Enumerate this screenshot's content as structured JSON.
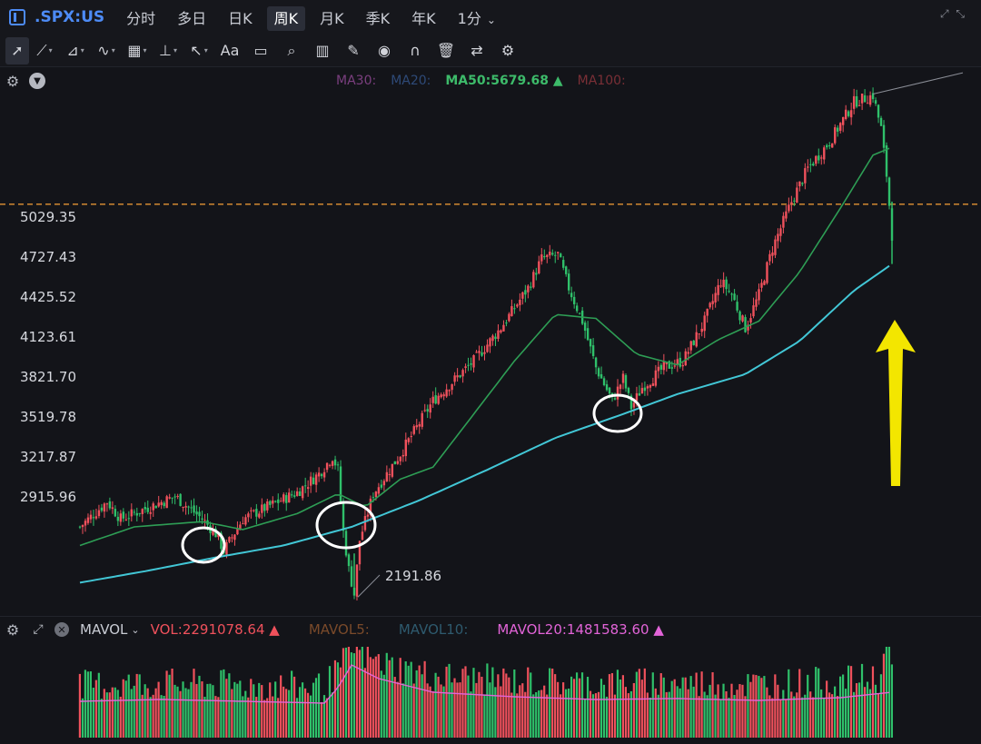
{
  "header": {
    "symbol": ".SPX:US",
    "tabs": [
      {
        "label": "分时"
      },
      {
        "label": "多日"
      },
      {
        "label": "日K"
      },
      {
        "label": "周K",
        "active": true
      },
      {
        "label": "月K"
      },
      {
        "label": "季K"
      },
      {
        "label": "年K"
      },
      {
        "label": "1分",
        "dropdown": true
      }
    ]
  },
  "toolbar": {
    "tools": [
      {
        "name": "cursor-arrow-icon",
        "glyph": "➚"
      },
      {
        "name": "line-tool-icon",
        "glyph": "⟋",
        "dropdown": true
      },
      {
        "name": "polyline-tool-icon",
        "glyph": "⊿",
        "dropdown": true
      },
      {
        "name": "wave-tool-icon",
        "glyph": "∿",
        "dropdown": true
      },
      {
        "name": "fib-tool-icon",
        "glyph": "▦",
        "dropdown": true
      },
      {
        "name": "measure-tool-icon",
        "glyph": "⊥",
        "dropdown": true
      },
      {
        "name": "arrow-tool-icon",
        "glyph": "↖",
        "dropdown": true
      },
      {
        "name": "text-tool-icon",
        "glyph": "Aa"
      },
      {
        "name": "comment-tool-icon",
        "glyph": "▭"
      },
      {
        "name": "zoom-icon",
        "glyph": "⌕"
      },
      {
        "name": "bar-chart-tool-icon",
        "glyph": "▥"
      },
      {
        "name": "brush-tool-icon",
        "glyph": "✎"
      },
      {
        "name": "eye-icon",
        "glyph": "◉"
      },
      {
        "name": "magnet-icon",
        "glyph": "∩"
      },
      {
        "name": "trash-icon",
        "glyph": "🗑"
      },
      {
        "name": "sync-icon",
        "glyph": "⇄"
      },
      {
        "name": "settings-icon",
        "glyph": "⚙"
      }
    ]
  },
  "ma_legend": [
    {
      "label": "MA30:",
      "color": "#7b3f7f"
    },
    {
      "label": "MA20:",
      "color": "#2e4a78"
    },
    {
      "label": "MA50:5679.68",
      "color": "#3dbb6a",
      "arrow": "▲"
    },
    {
      "label": "MA100:",
      "color": "#7a2f36"
    }
  ],
  "vol_legend": {
    "indicator": "MAVOL",
    "items": [
      {
        "label": "VOL:2291078.64",
        "color": "#f0515c",
        "arrow": "▲"
      },
      {
        "label": "MAVOL5:",
        "color": "#7a4a2a"
      },
      {
        "label": "MAVOL10:",
        "color": "#2e5a6e"
      },
      {
        "label": "MAVOL20:1481583.60",
        "color": "#e264d8",
        "arrow": "▲"
      }
    ]
  },
  "annotation": {
    "low_label": "2191.86"
  },
  "colors": {
    "up": "#f0515c",
    "down": "#2fc06a",
    "ma50": "#2e9e55",
    "ma200": "#42c7d6",
    "dashed": "#e39333",
    "arrow": "#f3e600"
  },
  "chart_data": {
    "type": "candlestick",
    "y_ticks": [
      "5029.35",
      "4727.43",
      "4425.52",
      "4123.61",
      "3821.70",
      "3519.78",
      "3217.87",
      "2915.96"
    ],
    "y_tick_values": [
      5029.35,
      4727.43,
      4425.52,
      4123.61,
      3821.7,
      3519.78,
      3217.87,
      2915.96
    ],
    "ylim": [
      2050,
      5950
    ],
    "x_index_range": [
      0,
      300
    ],
    "price_path_points": [
      [
        0,
        2700
      ],
      [
        10,
        2890
      ],
      [
        15,
        2760
      ],
      [
        35,
        2930
      ],
      [
        45,
        2760
      ],
      [
        50,
        2650
      ],
      [
        53,
        2520
      ],
      [
        60,
        2760
      ],
      [
        70,
        2860
      ],
      [
        80,
        2960
      ],
      [
        88,
        3100
      ],
      [
        93,
        3230
      ],
      [
        95,
        3130
      ],
      [
        97,
        2660
      ],
      [
        99,
        2380
      ],
      [
        101,
        2191.86
      ],
      [
        103,
        2600
      ],
      [
        108,
        2950
      ],
      [
        118,
        3250
      ],
      [
        130,
        3650
      ],
      [
        145,
        3950
      ],
      [
        155,
        4200
      ],
      [
        165,
        4500
      ],
      [
        170,
        4720
      ],
      [
        176,
        4750
      ],
      [
        180,
        4500
      ],
      [
        185,
        4250
      ],
      [
        190,
        3900
      ],
      [
        196,
        3650
      ],
      [
        200,
        3820
      ],
      [
        203,
        3600
      ],
      [
        207,
        3750
      ],
      [
        215,
        3900
      ],
      [
        222,
        3950
      ],
      [
        230,
        4250
      ],
      [
        236,
        4550
      ],
      [
        240,
        4450
      ],
      [
        245,
        4200
      ],
      [
        250,
        4450
      ],
      [
        255,
        4800
      ],
      [
        262,
        5150
      ],
      [
        268,
        5400
      ],
      [
        276,
        5600
      ],
      [
        285,
        5900
      ],
      [
        292,
        5950
      ],
      [
        295,
        5700
      ],
      [
        297,
        5350
      ],
      [
        299,
        4900
      ]
    ],
    "ma50_points": [
      [
        0,
        2560
      ],
      [
        20,
        2700
      ],
      [
        45,
        2740
      ],
      [
        60,
        2680
      ],
      [
        80,
        2800
      ],
      [
        95,
        2950
      ],
      [
        105,
        2850
      ],
      [
        118,
        3060
      ],
      [
        130,
        3150
      ],
      [
        145,
        3550
      ],
      [
        160,
        3950
      ],
      [
        175,
        4300
      ],
      [
        190,
        4270
      ],
      [
        205,
        4000
      ],
      [
        220,
        3920
      ],
      [
        235,
        4110
      ],
      [
        250,
        4250
      ],
      [
        265,
        4620
      ],
      [
        280,
        5100
      ],
      [
        292,
        5500
      ],
      [
        299,
        5560
      ]
    ],
    "ma200_points": [
      [
        0,
        2280
      ],
      [
        25,
        2370
      ],
      [
        50,
        2470
      ],
      [
        75,
        2560
      ],
      [
        100,
        2700
      ],
      [
        125,
        2900
      ],
      [
        150,
        3130
      ],
      [
        175,
        3370
      ],
      [
        200,
        3550
      ],
      [
        220,
        3700
      ],
      [
        245,
        3850
      ],
      [
        265,
        4100
      ],
      [
        285,
        4480
      ],
      [
        299,
        4680
      ]
    ],
    "dashed_level": 5130,
    "volume_series_note": "per-bar volumes shown as bars; MAVOL20 line overlay",
    "volume_path_points": [
      [
        0,
        0.4
      ],
      [
        30,
        0.42
      ],
      [
        60,
        0.4
      ],
      [
        90,
        0.38
      ],
      [
        95,
        0.55
      ],
      [
        100,
        0.8
      ],
      [
        110,
        0.65
      ],
      [
        130,
        0.5
      ],
      [
        160,
        0.45
      ],
      [
        190,
        0.42
      ],
      [
        220,
        0.43
      ],
      [
        250,
        0.41
      ],
      [
        280,
        0.44
      ],
      [
        299,
        0.5
      ]
    ]
  }
}
